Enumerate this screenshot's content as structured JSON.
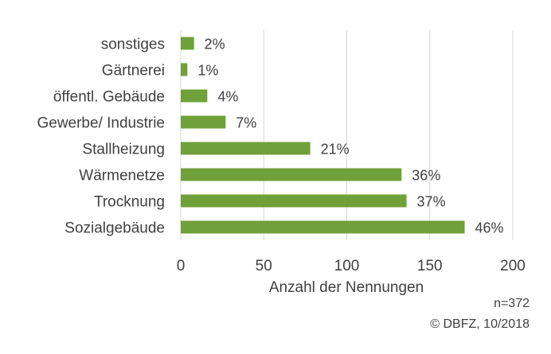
{
  "chart_data": {
    "type": "bar",
    "orientation": "horizontal",
    "categories": [
      "sonstiges",
      "Gärtnerei",
      "öffentl. Gebäude",
      "Gewerbe/ Industrie",
      "Stallheizung",
      "Wärmenetze",
      "Trocknung",
      "Sozialgebäude"
    ],
    "values": [
      8,
      4,
      16,
      27,
      78,
      133,
      136,
      171
    ],
    "value_labels": [
      "2%",
      "1%",
      "4%",
      "7%",
      "21%",
      "36%",
      "37%",
      "46%"
    ],
    "title": "",
    "xlabel": "Anzahl der Nennungen",
    "ylabel": "",
    "xlim": [
      0,
      200
    ],
    "x_ticks": [
      "0",
      "50",
      "100",
      "150",
      "200"
    ],
    "grid": "vertical",
    "legend": "none",
    "bar_color": "#70a03a",
    "grid_color": "#d9d9d9",
    "text_color": "#404040"
  },
  "notes": {
    "n": "n=372",
    "copyright": "© DBFZ, 10/2018"
  }
}
